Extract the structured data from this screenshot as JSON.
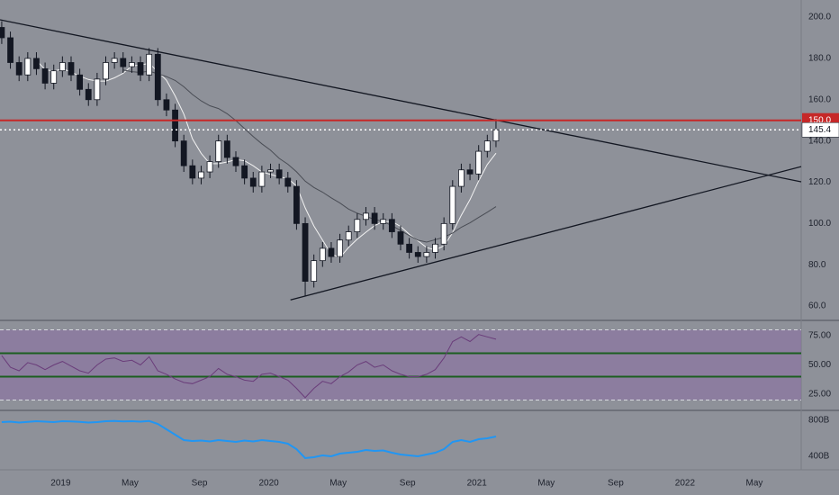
{
  "chart_data": [
    {
      "type": "candlestick",
      "x": [
        -3.4,
        -2.9,
        -2.4,
        -1.9,
        -1.4,
        -0.9,
        -0.4,
        0.1,
        0.6,
        1.1,
        1.6,
        2.1,
        2.6,
        3.1,
        3.6,
        4.1,
        4.6,
        5.1,
        5.6,
        6.1,
        6.6,
        7.1,
        7.6,
        8.1,
        8.6,
        9.1,
        9.6,
        10.1,
        10.6,
        11.1,
        11.6,
        12.1,
        12.6,
        13.1,
        13.6,
        14.1,
        14.6,
        15.1,
        15.6,
        16.1,
        16.6,
        17.1,
        17.6,
        18.1,
        18.6,
        19.1,
        19.6,
        20.1,
        20.6,
        21.1,
        21.6,
        22.1,
        22.6,
        23.1,
        23.6,
        24.1,
        24.6,
        25.1
      ],
      "open": [
        195,
        190,
        178,
        172,
        180,
        175,
        168,
        174,
        178,
        172,
        165,
        160,
        170,
        178,
        180,
        176,
        178,
        172,
        182,
        160,
        155,
        140,
        128,
        122,
        125,
        130,
        140,
        132,
        128,
        122,
        118,
        125,
        126,
        122,
        118,
        100,
        72,
        82,
        88,
        84,
        92,
        96,
        102,
        105,
        100,
        102,
        96,
        90,
        86,
        84,
        86,
        90,
        100,
        118,
        126,
        124,
        135,
        140
      ],
      "high": [
        198,
        193,
        181,
        183,
        183,
        178,
        177,
        181,
        181,
        175,
        168,
        173,
        181,
        183,
        183,
        181,
        181,
        185,
        185,
        163,
        158,
        143,
        131,
        128,
        133,
        143,
        143,
        135,
        131,
        125,
        128,
        129,
        129,
        125,
        121,
        103,
        85,
        91,
        91,
        95,
        99,
        105,
        108,
        108,
        105,
        105,
        99,
        93,
        89,
        89,
        93,
        103,
        121,
        129,
        129,
        138,
        143,
        150.6
      ],
      "low": [
        187,
        175,
        169,
        169,
        172,
        165,
        165,
        171,
        169,
        162,
        157,
        157,
        167,
        175,
        173,
        173,
        169,
        169,
        157,
        152,
        137,
        125,
        119,
        119,
        122,
        127,
        129,
        125,
        119,
        115,
        115,
        122,
        119,
        115,
        97,
        65,
        69,
        79,
        81,
        81,
        89,
        93,
        99,
        97,
        97,
        93,
        87,
        83,
        81,
        81,
        83,
        87,
        97,
        115,
        121,
        121,
        132,
        137
      ],
      "close": [
        190,
        178,
        172,
        180,
        175,
        168,
        174,
        178,
        172,
        165,
        160,
        170,
        178,
        180,
        176,
        178,
        172,
        182,
        160,
        155,
        140,
        128,
        122,
        125,
        130,
        140,
        132,
        128,
        122,
        118,
        125,
        126,
        122,
        118,
        100,
        72,
        82,
        88,
        84,
        92,
        96,
        102,
        105,
        100,
        102,
        96,
        90,
        86,
        84,
        86,
        90,
        100,
        118,
        126,
        124,
        135,
        140,
        145.4
      ],
      "up_color": "#ffffff",
      "down_color": "#131722",
      "xlim": [
        -3.5,
        42.7
      ],
      "xticks": [
        {
          "value": 0,
          "label": "2019"
        },
        {
          "value": 4,
          "label": "May"
        },
        {
          "value": 8,
          "label": "Sep"
        },
        {
          "value": 12,
          "label": "2020"
        },
        {
          "value": 16,
          "label": "May"
        },
        {
          "value": 20,
          "label": "Sep"
        },
        {
          "value": 24,
          "label": "2021"
        },
        {
          "value": 28,
          "label": "May"
        },
        {
          "value": 32,
          "label": "Sep"
        },
        {
          "value": 36,
          "label": "2022"
        },
        {
          "value": 40,
          "label": "May"
        }
      ],
      "ylim": [
        53.5,
        208.3
      ],
      "yticks": [
        {
          "value": 60,
          "label": "60.0"
        },
        {
          "value": 80,
          "label": "80.0"
        },
        {
          "value": 100,
          "label": "100.0"
        },
        {
          "value": 120,
          "label": "120.0"
        },
        {
          "value": 140,
          "label": "140.0"
        },
        {
          "value": 160,
          "label": "160.0"
        },
        {
          "value": 180,
          "label": "180.0"
        },
        {
          "value": 200,
          "label": "200.0"
        }
      ],
      "trendlines": [
        {
          "x": [
            -3.5,
            42.7
          ],
          "values": [
            198.7,
            120.2
          ]
        },
        {
          "x": [
            13.25,
            42.7
          ],
          "values": [
            63,
            127.6
          ]
        }
      ],
      "horizontal_lines": [
        {
          "value": 150,
          "label": "150.0",
          "color": "#c62828",
          "style": "solid"
        },
        {
          "value": 145.4,
          "label": "145.4",
          "color": "#ffffff",
          "style": "dotted"
        }
      ]
    },
    {
      "type": "line",
      "values": [
        58,
        48,
        45,
        52,
        50,
        46,
        50,
        53,
        49,
        45,
        43,
        50,
        55,
        56,
        53,
        54,
        50,
        57,
        45,
        42,
        38,
        35,
        34,
        37,
        40,
        47,
        42,
        40,
        37,
        36,
        42,
        43,
        40,
        37,
        30,
        22,
        30,
        36,
        34,
        40,
        44,
        50,
        53,
        48,
        50,
        45,
        42,
        40,
        40,
        42,
        46,
        56,
        70,
        74,
        70,
        76,
        74,
        72
      ],
      "color": "#6a3d7a",
      "ylim": [
        11.9,
        87.3
      ],
      "yticks": [
        {
          "value": 25,
          "label": "25.00"
        },
        {
          "value": 50,
          "label": "50.00"
        },
        {
          "value": 75,
          "label": "75.00"
        }
      ],
      "band": [
        20,
        80
      ],
      "levels": [
        40,
        60
      ]
    },
    {
      "type": "line",
      "values": [
        780,
        785,
        775,
        782,
        790,
        785,
        780,
        790,
        788,
        782,
        775,
        780,
        790,
        792,
        788,
        790,
        785,
        792,
        760,
        700,
        640,
        580,
        570,
        575,
        565,
        580,
        570,
        560,
        575,
        565,
        580,
        570,
        560,
        540,
        480,
        380,
        390,
        410,
        400,
        430,
        440,
        450,
        470,
        460,
        465,
        440,
        420,
        410,
        400,
        420,
        440,
        480,
        560,
        580,
        560,
        590,
        600,
        620
      ],
      "color": "#2196f3",
      "ylim": [
        250,
        900
      ],
      "yticks": [
        {
          "value": 400,
          "label": "400B"
        },
        {
          "value": 800,
          "label": "800B"
        }
      ]
    }
  ]
}
